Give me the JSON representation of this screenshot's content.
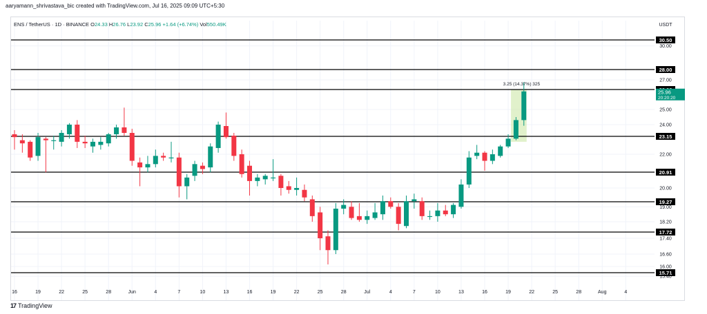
{
  "credit": "aaryamann_shrivastava_bic created with TradingView.com, Jul 16, 2025 09:09 UTC+5:30",
  "symbol_line": {
    "symbol": "ENS / TetherUS · 1D · BINANCE",
    "open_label": "O",
    "open": "24.33",
    "high_label": "H",
    "high": "26.76",
    "low_label": "L",
    "low": "23.92",
    "close_label": "C",
    "close": "25.96",
    "change": "+1.64 (+6.74%)",
    "vol_label": "Vol",
    "vol": "550.49K"
  },
  "logo_text": "TradingView",
  "colors": {
    "up": "#089981",
    "down": "#f23645",
    "level_line": "#000000",
    "grid": "#f0f3fa",
    "measure": "#c8e6a0",
    "current_tag": "#089981"
  },
  "chart_data": {
    "type": "candlestick",
    "currency": "USDT",
    "ylim": [
      15.0,
      31.5
    ],
    "x_ticks": [
      "16",
      "19",
      "22",
      "25",
      "28",
      "Jun",
      "4",
      "7",
      "10",
      "13",
      "16",
      "19",
      "22",
      "25",
      "28",
      "Jul",
      "4",
      "7",
      "10",
      "13",
      "16",
      "19",
      "22",
      "25",
      "28",
      "Aug",
      "4"
    ],
    "y_ticks": [
      "30.00",
      "27.00",
      "25.00",
      "24.00",
      "22.00",
      "20.00",
      "19.00",
      "18.20",
      "17.40",
      "16.60",
      "16.00",
      "15.40"
    ],
    "horizontal_levels": [
      "30.50",
      "28.00",
      "26.06",
      "23.15",
      "20.91",
      "19.27",
      "17.72",
      "15.71"
    ],
    "current_price": {
      "price": "25.96",
      "countdown": "20:20:20"
    },
    "measure_label": "3.25 (14.37%) 325",
    "candles": [
      {
        "o": 23.3,
        "h": 23.6,
        "l": 22.3,
        "c": 23.1
      },
      {
        "o": 22.9,
        "h": 23.3,
        "l": 22.1,
        "c": 22.7
      },
      {
        "o": 22.8,
        "h": 22.9,
        "l": 21.6,
        "c": 21.8
      },
      {
        "o": 21.9,
        "h": 23.4,
        "l": 21.6,
        "c": 23.1
      },
      {
        "o": 23.0,
        "h": 23.1,
        "l": 20.9,
        "c": 22.9
      },
      {
        "o": 22.9,
        "h": 23.2,
        "l": 22.3,
        "c": 22.9
      },
      {
        "o": 22.8,
        "h": 23.6,
        "l": 22.5,
        "c": 23.4
      },
      {
        "o": 23.3,
        "h": 24.1,
        "l": 23.0,
        "c": 24.0
      },
      {
        "o": 24.0,
        "h": 24.3,
        "l": 22.4,
        "c": 22.8
      },
      {
        "o": 22.8,
        "h": 23.2,
        "l": 22.4,
        "c": 22.7
      },
      {
        "o": 22.5,
        "h": 23.0,
        "l": 22.1,
        "c": 22.8
      },
      {
        "o": 22.6,
        "h": 23.1,
        "l": 22.3,
        "c": 22.8
      },
      {
        "o": 22.7,
        "h": 23.4,
        "l": 22.5,
        "c": 23.3
      },
      {
        "o": 23.3,
        "h": 24.0,
        "l": 23.0,
        "c": 23.8
      },
      {
        "o": 23.8,
        "h": 25.1,
        "l": 23.2,
        "c": 23.4
      },
      {
        "o": 23.4,
        "h": 23.7,
        "l": 21.3,
        "c": 21.6
      },
      {
        "o": 21.5,
        "h": 21.8,
        "l": 20.1,
        "c": 21.2
      },
      {
        "o": 21.2,
        "h": 21.9,
        "l": 20.9,
        "c": 21.4
      },
      {
        "o": 21.4,
        "h": 22.3,
        "l": 21.2,
        "c": 21.9
      },
      {
        "o": 21.9,
        "h": 22.1,
        "l": 21.6,
        "c": 21.8
      },
      {
        "o": 21.8,
        "h": 22.8,
        "l": 21.5,
        "c": 21.8
      },
      {
        "o": 21.8,
        "h": 22.1,
        "l": 19.5,
        "c": 20.1
      },
      {
        "o": 20.1,
        "h": 20.8,
        "l": 19.4,
        "c": 20.6
      },
      {
        "o": 20.7,
        "h": 21.6,
        "l": 20.4,
        "c": 21.4
      },
      {
        "o": 21.3,
        "h": 21.5,
        "l": 20.8,
        "c": 21.1
      },
      {
        "o": 21.2,
        "h": 22.7,
        "l": 20.9,
        "c": 22.5
      },
      {
        "o": 22.4,
        "h": 24.2,
        "l": 22.1,
        "c": 24.0
      },
      {
        "o": 23.9,
        "h": 24.8,
        "l": 23.0,
        "c": 23.1
      },
      {
        "o": 23.2,
        "h": 23.4,
        "l": 21.6,
        "c": 21.9
      },
      {
        "o": 22.0,
        "h": 22.3,
        "l": 20.6,
        "c": 20.8
      },
      {
        "o": 21.3,
        "h": 21.6,
        "l": 19.6,
        "c": 20.4
      },
      {
        "o": 20.4,
        "h": 20.8,
        "l": 20.1,
        "c": 20.6
      },
      {
        "o": 20.5,
        "h": 20.8,
        "l": 20.2,
        "c": 20.7
      },
      {
        "o": 20.6,
        "h": 21.7,
        "l": 20.4,
        "c": 20.6
      },
      {
        "o": 20.7,
        "h": 20.8,
        "l": 19.6,
        "c": 20.0
      },
      {
        "o": 20.1,
        "h": 20.4,
        "l": 19.7,
        "c": 19.9
      },
      {
        "o": 19.9,
        "h": 20.6,
        "l": 19.6,
        "c": 20.0
      },
      {
        "o": 19.9,
        "h": 20.2,
        "l": 19.3,
        "c": 19.5
      },
      {
        "o": 19.4,
        "h": 19.6,
        "l": 18.2,
        "c": 18.5
      },
      {
        "o": 18.7,
        "h": 19.0,
        "l": 16.8,
        "c": 17.4
      },
      {
        "o": 17.5,
        "h": 17.8,
        "l": 16.1,
        "c": 16.8
      },
      {
        "o": 16.8,
        "h": 19.2,
        "l": 16.6,
        "c": 18.9
      },
      {
        "o": 18.9,
        "h": 19.4,
        "l": 18.6,
        "c": 19.1
      },
      {
        "o": 19.0,
        "h": 19.3,
        "l": 18.3,
        "c": 18.4
      },
      {
        "o": 18.5,
        "h": 19.2,
        "l": 18.2,
        "c": 18.3
      },
      {
        "o": 18.3,
        "h": 18.8,
        "l": 18.1,
        "c": 18.5
      },
      {
        "o": 18.4,
        "h": 19.2,
        "l": 18.3,
        "c": 18.7
      },
      {
        "o": 18.6,
        "h": 19.6,
        "l": 18.3,
        "c": 19.3
      },
      {
        "o": 19.3,
        "h": 19.5,
        "l": 18.9,
        "c": 19.0
      },
      {
        "o": 19.0,
        "h": 19.2,
        "l": 17.8,
        "c": 18.1
      },
      {
        "o": 18.0,
        "h": 19.6,
        "l": 17.9,
        "c": 19.3
      },
      {
        "o": 19.3,
        "h": 19.7,
        "l": 18.9,
        "c": 19.4
      },
      {
        "o": 19.3,
        "h": 19.5,
        "l": 18.3,
        "c": 18.5
      },
      {
        "o": 18.5,
        "h": 18.8,
        "l": 18.3,
        "c": 18.5
      },
      {
        "o": 18.5,
        "h": 19.2,
        "l": 18.2,
        "c": 18.8
      },
      {
        "o": 18.8,
        "h": 19.1,
        "l": 18.5,
        "c": 18.6
      },
      {
        "o": 18.6,
        "h": 19.2,
        "l": 18.4,
        "c": 19.1
      },
      {
        "o": 19.0,
        "h": 20.5,
        "l": 18.9,
        "c": 20.2
      },
      {
        "o": 20.2,
        "h": 22.2,
        "l": 20.0,
        "c": 21.8
      },
      {
        "o": 21.9,
        "h": 22.6,
        "l": 21.7,
        "c": 22.1
      },
      {
        "o": 22.1,
        "h": 22.2,
        "l": 21.0,
        "c": 21.6
      },
      {
        "o": 21.6,
        "h": 22.3,
        "l": 21.4,
        "c": 22.0
      },
      {
        "o": 21.9,
        "h": 22.6,
        "l": 21.8,
        "c": 22.5
      },
      {
        "o": 22.5,
        "h": 23.3,
        "l": 22.4,
        "c": 23.0
      },
      {
        "o": 23.0,
        "h": 24.5,
        "l": 22.9,
        "c": 24.3
      },
      {
        "o": 24.3,
        "h": 26.76,
        "l": 23.92,
        "c": 25.96
      }
    ]
  }
}
